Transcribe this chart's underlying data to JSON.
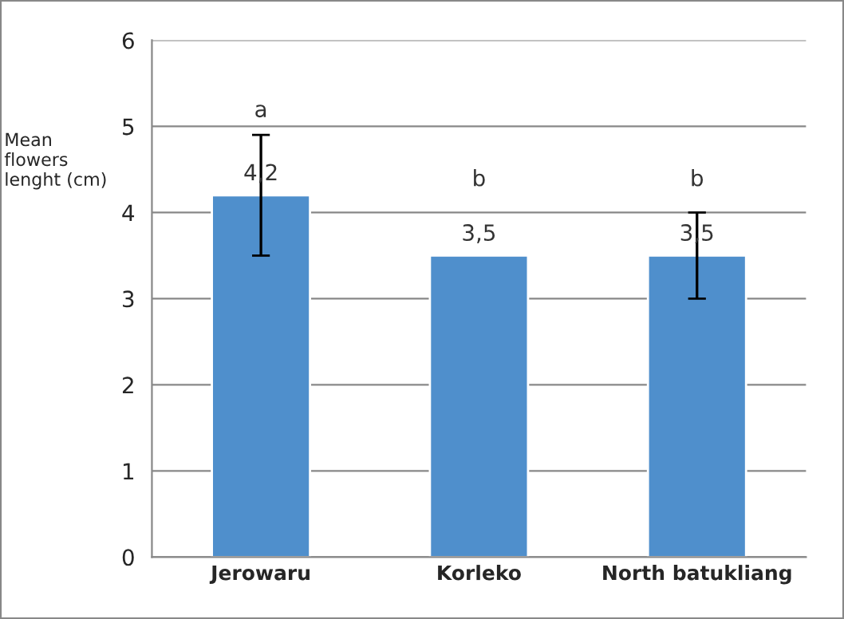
{
  "chart_data": {
    "type": "bar",
    "ylabel": "Mean\nflowers\nlenght (cm)",
    "categories": [
      "Jerowaru",
      "Korleko",
      "North batukliang"
    ],
    "values": [
      4.2,
      3.5,
      3.5
    ],
    "errors": [
      0.7,
      null,
      0.5
    ],
    "value_labels": [
      "4,2",
      "3,5",
      "3,5"
    ],
    "color": "#4f8fcc",
    "ylim": [
      0,
      6
    ],
    "yticks": [
      0,
      1,
      2,
      3,
      4,
      5,
      6
    ],
    "grid": "y",
    "legend": false,
    "annotations": [
      "a",
      "b",
      "b"
    ]
  }
}
